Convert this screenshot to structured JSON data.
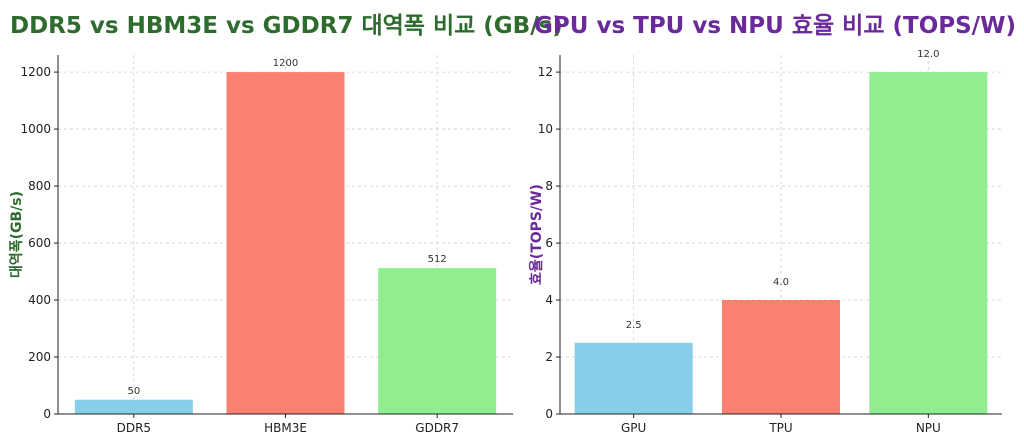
{
  "chart_data": [
    {
      "type": "bar",
      "title": "DDR5 vs HBM3E vs GDDR7 대역폭 비교 (GB/s)",
      "title_color": "#2e6b2e",
      "categories": [
        "DDR5",
        "HBM3E",
        "GDDR7"
      ],
      "values": [
        50,
        1200,
        512
      ],
      "value_labels": [
        "50",
        "1200",
        "512"
      ],
      "colors": [
        "#87ceeb",
        "#fa8072",
        "#90ee90"
      ],
      "xlabel": "",
      "ylabel": "대역폭(GB/s)",
      "ylabel_color": "#2e6b2e",
      "ylim": [
        0,
        1260
      ],
      "yticks": [
        0,
        200,
        400,
        600,
        800,
        1000,
        1200
      ],
      "ytick_labels": [
        "0",
        "200",
        "400",
        "600",
        "800",
        "1000",
        "1200"
      ],
      "grid": true
    },
    {
      "type": "bar",
      "title": "GPU vs TPU vs NPU 효율 비교 (TOPS/W)",
      "title_color": "#6a2a9a",
      "categories": [
        "GPU",
        "TPU",
        "NPU"
      ],
      "values": [
        2.5,
        4.0,
        12.0
      ],
      "value_labels": [
        "2.5",
        "4.0",
        "12.0"
      ],
      "colors": [
        "#87ceeb",
        "#fa8072",
        "#90ee90"
      ],
      "xlabel": "",
      "ylabel": "효율(TOPS/W)",
      "ylabel_color": "#6a2a9a",
      "ylim": [
        0,
        12.6
      ],
      "yticks": [
        0,
        2,
        4,
        6,
        8,
        10,
        12
      ],
      "ytick_labels": [
        "0",
        "2",
        "4",
        "6",
        "8",
        "10",
        "12"
      ],
      "grid": true
    }
  ]
}
